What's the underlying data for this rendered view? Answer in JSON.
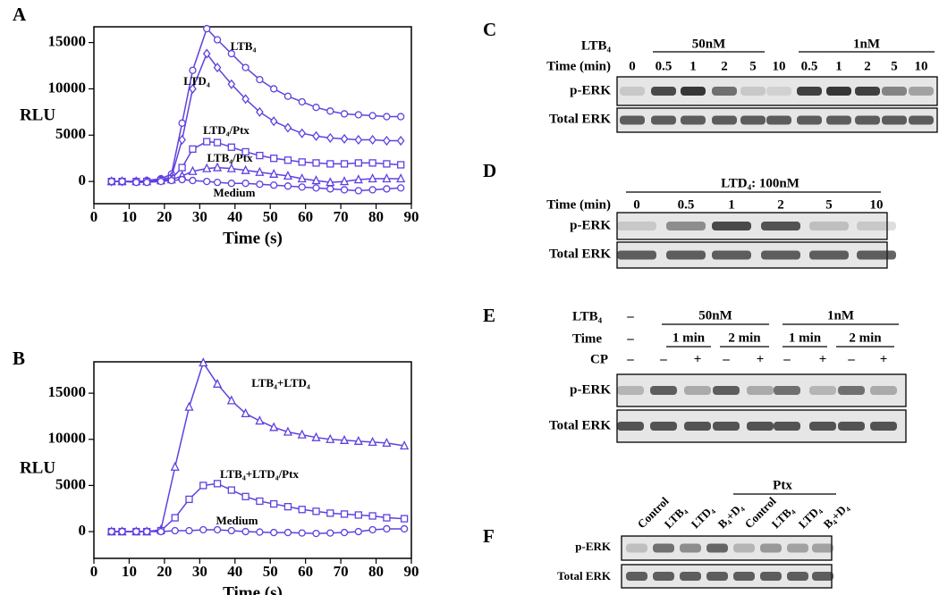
{
  "chart_data": [
    {
      "type": "line",
      "panel": "A",
      "ylabel": "RLU",
      "xlabel": "Time (s)",
      "xlim": [
        0,
        90
      ],
      "xticks": [
        0,
        10,
        20,
        30,
        40,
        50,
        60,
        70,
        80,
        90
      ],
      "ylim": [
        -2400,
        16700
      ],
      "yticks": [
        0,
        5000,
        10000,
        15000
      ],
      "x": [
        5,
        8,
        12,
        15,
        19,
        22,
        25,
        28,
        32,
        35,
        39,
        43,
        47,
        51,
        55,
        59,
        63,
        67,
        71,
        75,
        79,
        83,
        87
      ],
      "series": [
        {
          "name": "LTB₄",
          "color": "#6040e0",
          "marker": "circle",
          "values": [
            0,
            0,
            0,
            100,
            300,
            800,
            6300,
            12000,
            16500,
            15300,
            13800,
            12300,
            11000,
            10000,
            9200,
            8600,
            8000,
            7600,
            7300,
            7200,
            7100,
            7000,
            7000
          ]
        },
        {
          "name": "LTD₄",
          "color": "#6040e0",
          "marker": "diamond",
          "values": [
            0,
            0,
            0,
            50,
            200,
            500,
            4500,
            10000,
            13800,
            12300,
            10500,
            8900,
            7500,
            6500,
            5800,
            5200,
            4900,
            4700,
            4600,
            4500,
            4500,
            4400,
            4400
          ]
        },
        {
          "name": "LTD₄/Ptx",
          "color": "#6040e0",
          "marker": "square",
          "values": [
            0,
            0,
            0,
            0,
            100,
            300,
            1500,
            3500,
            4300,
            4200,
            3700,
            3200,
            2800,
            2500,
            2300,
            2100,
            2000,
            1900,
            1900,
            2000,
            2000,
            1900,
            1800
          ]
        },
        {
          "name": "LTB₄/Ptx",
          "color": "#6040e0",
          "marker": "triangle",
          "values": [
            0,
            0,
            0,
            0,
            100,
            200,
            600,
            1100,
            1400,
            1500,
            1400,
            1200,
            1000,
            800,
            600,
            300,
            100,
            -100,
            0,
            200,
            300,
            300,
            300
          ]
        },
        {
          "name": "Medium",
          "color": "#6040e0",
          "marker": "circle",
          "values": [
            0,
            0,
            -100,
            -100,
            0,
            100,
            200,
            100,
            0,
            -100,
            -200,
            -200,
            -300,
            -400,
            -500,
            -600,
            -700,
            -800,
            -900,
            -1000,
            -900,
            -800,
            -700
          ]
        }
      ]
    },
    {
      "type": "line",
      "panel": "B",
      "ylabel": "RLU",
      "xlabel": "Time (s)",
      "xlim": [
        0,
        90
      ],
      "xticks": [
        0,
        10,
        20,
        30,
        40,
        50,
        60,
        70,
        80,
        90
      ],
      "ylim": [
        -2900,
        18400
      ],
      "yticks": [
        0,
        5000,
        10000,
        15000
      ],
      "x": [
        5,
        8,
        12,
        15,
        19,
        23,
        27,
        31,
        35,
        39,
        43,
        47,
        51,
        55,
        59,
        63,
        67,
        71,
        75,
        79,
        83,
        88
      ],
      "series": [
        {
          "name": "LTB₄+LTD₄",
          "color": "#6040e0",
          "marker": "triangle",
          "values": [
            0,
            0,
            0,
            0,
            200,
            7000,
            13500,
            18300,
            16000,
            14200,
            12800,
            12000,
            11300,
            10800,
            10500,
            10200,
            10000,
            9900,
            9800,
            9700,
            9600,
            9300
          ]
        },
        {
          "name": "LTB₄+LTD₄/Ptx",
          "color": "#6040e0",
          "marker": "square",
          "values": [
            0,
            0,
            0,
            0,
            100,
            1500,
            3500,
            5000,
            5200,
            4500,
            3800,
            3300,
            3000,
            2700,
            2400,
            2200,
            2000,
            1900,
            1800,
            1700,
            1500,
            1400
          ]
        },
        {
          "name": "Medium",
          "color": "#6040e0",
          "marker": "circle",
          "values": [
            0,
            0,
            0,
            0,
            0,
            100,
            100,
            200,
            200,
            100,
            0,
            -50,
            -100,
            -100,
            -150,
            -200,
            -150,
            -100,
            0,
            200,
            300,
            300
          ]
        }
      ]
    }
  ],
  "blots": {
    "C": {
      "panel": "C",
      "treatment": {
        "label": "LTB₄",
        "groups": [
          "50nM",
          "1nM"
        ]
      },
      "time": {
        "label": "Time (min)",
        "lanes": [
          "0",
          "0.5",
          "1",
          "2",
          "5",
          "10",
          "0.5",
          "1",
          "2",
          "5",
          "10"
        ]
      },
      "bands": [
        "p-ERK",
        "Total ERK"
      ]
    },
    "D": {
      "panel": "D",
      "treatment": {
        "groups": [
          "LTD₄: 100nM"
        ]
      },
      "time": {
        "label": "Time (min)",
        "lanes": [
          "0",
          "0.5",
          "1",
          "2",
          "5",
          "10"
        ]
      },
      "bands": [
        "p-ERK",
        "Total ERK"
      ]
    },
    "E": {
      "panel": "E",
      "treatment": {
        "label": "LTB₄",
        "control": "–",
        "groups": [
          "50nM",
          "1nM"
        ]
      },
      "time": {
        "label": "Time",
        "control": "–",
        "groups": [
          "1 min",
          "2 min",
          "1 min",
          "2 min"
        ]
      },
      "cp": {
        "label": "CP",
        "lanes": [
          "–",
          "–",
          "+",
          "–",
          "+",
          "–",
          "+",
          "–",
          "+"
        ]
      },
      "bands": [
        "p-ERK",
        "Total ERK"
      ]
    },
    "F": {
      "panel": "F",
      "lanes": [
        "Control",
        "LTB₄",
        "LTD₄",
        "B₄+D₄",
        "Control",
        "LTB₄",
        "LTD₄",
        "B₄+D₄"
      ],
      "group": "Ptx",
      "bands": [
        "p-ERK",
        "Total ERK"
      ]
    }
  }
}
